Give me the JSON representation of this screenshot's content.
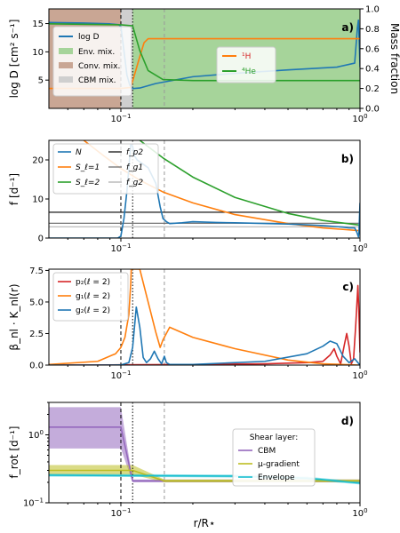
{
  "x_axis": {
    "label": "r/R⋆",
    "scale": "log",
    "range": [
      0.05,
      1.0
    ],
    "ticks": [
      {
        "value": 0.1,
        "base": "10",
        "exp": "−1"
      },
      {
        "value": 1.0,
        "base": "10",
        "exp": "0"
      }
    ],
    "markers": [
      {
        "x": 0.1,
        "style": "dashed",
        "color": "#000000"
      },
      {
        "x": 0.112,
        "style": "dotted",
        "color": "#000000"
      },
      {
        "x": 0.152,
        "style": "dashed",
        "color": "#999999"
      }
    ]
  },
  "colors": {
    "blue": "#1f77b4",
    "orange": "#ff7f0e",
    "green": "#2ca02c",
    "red": "#d62728",
    "purple": "#9467bd",
    "olive": "#bcbd22",
    "cyan": "#17becf",
    "env_fill": "#a6d49a",
    "conv_fill": "#c9a694",
    "cbm_fill": "#cfcfcf",
    "mass_fraction_axis": "#e00000"
  },
  "chart_data": [
    {
      "panel": "a)",
      "type": "line",
      "ylabel": "log D [cm² s⁻¹]",
      "ylim": [
        0,
        17.6
      ],
      "yticks": [
        "5",
        "10",
        "15"
      ],
      "y2label": "Mass fraction",
      "y2lim": [
        0.0,
        1.0
      ],
      "y2ticks": [
        "0.0",
        "0.2",
        "0.4",
        "0.6",
        "0.8",
        "1.0"
      ],
      "regions": [
        {
          "name": "Conv. mix.",
          "x": [
            0.05,
            0.1
          ]
        },
        {
          "name": "CBM mix.",
          "x": [
            0.1,
            0.112
          ]
        },
        {
          "name": "Env. mix.",
          "x": [
            0.112,
            1.0
          ]
        }
      ],
      "series": [
        {
          "name": "log D",
          "axis": "left",
          "x": [
            0.05,
            0.07,
            0.09,
            0.098,
            0.1,
            0.103,
            0.106,
            0.109,
            0.112,
            0.12,
            0.14,
            0.2,
            0.3,
            0.5,
            0.8,
            0.95,
            0.975,
            0.985,
            0.995,
            1.0
          ],
          "y": [
            15.2,
            15.1,
            14.95,
            14.8,
            14.5,
            10.2,
            5.9,
            4.1,
            3.5,
            3.6,
            4.4,
            5.6,
            6.2,
            6.8,
            7.3,
            8.0,
            14.2,
            15.6,
            10.5,
            7.3
          ]
        },
        {
          "name": "¹H",
          "axis": "right",
          "x": [
            0.05,
            0.1,
            0.11,
            0.12,
            0.125,
            0.13,
            0.14,
            0.2,
            1.0
          ],
          "y": [
            0.2,
            0.2,
            0.21,
            0.52,
            0.66,
            0.7,
            0.7,
            0.7,
            0.7
          ]
        },
        {
          "name": "⁴He",
          "axis": "right",
          "x": [
            0.05,
            0.1,
            0.112,
            0.12,
            0.13,
            0.15,
            0.2,
            1.0
          ],
          "y": [
            0.85,
            0.84,
            0.83,
            0.58,
            0.38,
            0.29,
            0.28,
            0.28
          ]
        }
      ]
    },
    {
      "panel": "b)",
      "type": "line",
      "ylabel": "f [d⁻¹]",
      "ylim": [
        0,
        25
      ],
      "yticks": [
        "0",
        "10",
        "20"
      ],
      "series": [
        {
          "name": "N",
          "x": [
            0.05,
            0.097,
            0.1,
            0.103,
            0.106,
            0.108,
            0.11,
            0.112,
            0.114,
            0.117,
            0.12,
            0.13,
            0.14,
            0.146,
            0.15,
            0.155,
            0.16,
            0.18,
            0.2,
            0.25,
            0.3,
            0.5,
            0.7,
            0.85,
            0.9,
            0.95,
            0.97,
            0.985,
            0.99,
            1.0
          ],
          "y": [
            0,
            0,
            0.5,
            5,
            12,
            18,
            24,
            23.5,
            21,
            20,
            19.5,
            18,
            14,
            8,
            5,
            4.2,
            3.7,
            3.9,
            4.2,
            4.0,
            3.9,
            3.6,
            3.2,
            2.8,
            2.6,
            2.6,
            1.5,
            0.3,
            1.5,
            9
          ]
        },
        {
          "name": "S_ℓ=1",
          "x": [
            0.07,
            0.085,
            0.1,
            0.12,
            0.15,
            0.2,
            0.3,
            0.5,
            0.7,
            1.0
          ],
          "y": [
            25,
            21,
            17.8,
            14.8,
            11.8,
            9.0,
            6.0,
            3.7,
            2.6,
            1.9
          ]
        },
        {
          "name": "S_ℓ=2",
          "x": [
            0.12,
            0.15,
            0.2,
            0.3,
            0.5,
            0.7,
            1.0
          ],
          "y": [
            25,
            20.5,
            15.6,
            10.4,
            6.3,
            4.5,
            3.3
          ]
        },
        {
          "name": "f_p2",
          "x": [
            0.05,
            1.0
          ],
          "y": [
            6.6,
            6.6
          ]
        },
        {
          "name": "f_g1",
          "x": [
            0.05,
            1.0
          ],
          "y": [
            3.8,
            3.8
          ]
        },
        {
          "name": "f_g2",
          "x": [
            0.05,
            1.0
          ],
          "y": [
            2.9,
            2.9
          ]
        }
      ]
    },
    {
      "panel": "c)",
      "type": "line",
      "ylabel": "β_nl · K_nl(r)",
      "ylim": [
        0,
        7.6
      ],
      "yticks": [
        "0.0",
        "2.5",
        "5.0",
        "7.5"
      ],
      "series": [
        {
          "name": "p₂(ℓ = 2)",
          "x": [
            0.05,
            0.1,
            0.2,
            0.4,
            0.6,
            0.7,
            0.75,
            0.78,
            0.8,
            0.83,
            0.86,
            0.88,
            0.9,
            0.92,
            0.94,
            0.96,
            0.98,
            0.99,
            1.0
          ],
          "y": [
            0,
            0.02,
            0.05,
            0.1,
            0.2,
            0.3,
            0.8,
            1.3,
            0.7,
            0.1,
            1.6,
            2.5,
            1.5,
            0.1,
            0.5,
            3.2,
            6.3,
            4.0,
            1.0
          ]
        },
        {
          "name": "g₁(ℓ = 2)",
          "x": [
            0.05,
            0.08,
            0.095,
            0.1,
            0.104,
            0.108,
            0.11,
            0.1105,
            0.115,
            0.12,
            0.13,
            0.14,
            0.146,
            0.15,
            0.16,
            0.2,
            0.3,
            0.5,
            0.7,
            1.0
          ],
          "y": [
            0.05,
            0.3,
            0.9,
            1.4,
            2.2,
            4.0,
            6.5,
            7.6,
            7.6,
            7.6,
            5.0,
            2.6,
            1.4,
            2.0,
            3.0,
            2.2,
            1.3,
            0.4,
            0.1,
            0
          ]
        },
        {
          "name": "g₂(ℓ = 2)",
          "x": [
            0.05,
            0.1,
            0.108,
            0.112,
            0.116,
            0.12,
            0.124,
            0.128,
            0.133,
            0.138,
            0.143,
            0.148,
            0.152,
            0.155,
            0.16,
            0.2,
            0.4,
            0.6,
            0.7,
            0.75,
            0.8,
            0.85,
            0.9,
            0.95,
            1.0
          ],
          "y": [
            0,
            0.01,
            0.2,
            1.4,
            4.6,
            3.0,
            0.6,
            0.2,
            0.5,
            1.1,
            0.5,
            0.1,
            0.7,
            0.2,
            0.05,
            0.05,
            0.3,
            0.9,
            1.5,
            1.9,
            1.7,
            0.7,
            0.2,
            0.5,
            0
          ]
        }
      ]
    },
    {
      "panel": "d)",
      "type": "area",
      "ylabel": "f_rot [d⁻¹]",
      "yscale": "log",
      "ylim": [
        0.1,
        3.0
      ],
      "yticks": [
        {
          "base": "10",
          "exp": "−1"
        },
        {
          "base": "10",
          "exp": "0"
        }
      ],
      "legend_title": "Shear layer:",
      "series": [
        {
          "name": "CBM",
          "center": [
            [
              0.05,
              1.3
            ],
            [
              0.1,
              1.3
            ],
            [
              0.112,
              0.21
            ],
            [
              1.0,
              0.21
            ]
          ],
          "upper": [
            [
              0.05,
              2.55
            ],
            [
              0.1,
              2.55
            ],
            [
              0.112,
              0.22
            ],
            [
              1.0,
              0.22
            ]
          ],
          "lower": [
            [
              0.05,
              0.63
            ],
            [
              0.1,
              0.63
            ],
            [
              0.112,
              0.2
            ],
            [
              1.0,
              0.2
            ]
          ]
        },
        {
          "name": "μ-gradient",
          "center": [
            [
              0.05,
              0.3
            ],
            [
              0.112,
              0.3
            ],
            [
              0.152,
              0.21
            ],
            [
              1.0,
              0.21
            ]
          ],
          "upper": [
            [
              0.05,
              0.36
            ],
            [
              0.112,
              0.36
            ],
            [
              0.152,
              0.22
            ],
            [
              1.0,
              0.22
            ]
          ],
          "lower": [
            [
              0.05,
              0.26
            ],
            [
              0.112,
              0.26
            ],
            [
              0.152,
              0.2
            ],
            [
              1.0,
              0.2
            ]
          ]
        },
        {
          "name": "Envelope",
          "center": [
            [
              0.05,
              0.255
            ],
            [
              0.3,
              0.247
            ],
            [
              0.6,
              0.23
            ],
            [
              1.0,
              0.195
            ]
          ],
          "upper": [
            [
              0.05,
              0.268
            ],
            [
              0.3,
              0.26
            ],
            [
              0.6,
              0.242
            ],
            [
              1.0,
              0.205
            ]
          ],
          "lower": [
            [
              0.05,
              0.243
            ],
            [
              0.3,
              0.235
            ],
            [
              0.6,
              0.218
            ],
            [
              1.0,
              0.186
            ]
          ]
        }
      ]
    }
  ]
}
